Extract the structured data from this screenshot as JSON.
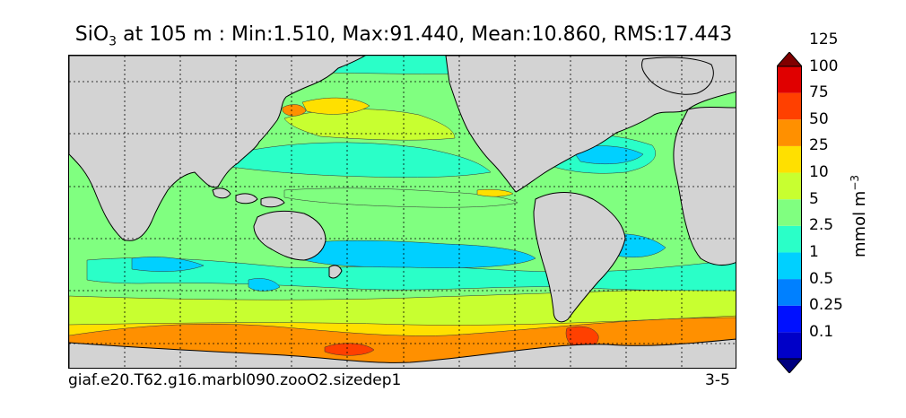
{
  "title": {
    "variable": "SiO",
    "variable_subscript": "3",
    "rest": " at 105 m : Min:1.510, Max:91.440, Mean:10.860, RMS:17.443"
  },
  "footer": {
    "case_name": "giaf.e20.T62.g16.marbl090.zooO2.sizedep1",
    "years": "3-5"
  },
  "colorbar": {
    "unit_prefix": "mmol m",
    "unit_exponent": "−3",
    "levels": [
      "0.1",
      "0.25",
      "0.5",
      "1",
      "2.5",
      "5",
      "10",
      "25",
      "50",
      "75",
      "100",
      "125"
    ],
    "colors": [
      "#00007f",
      "#0000c8",
      "#0010ff",
      "#0080ff",
      "#00d0ff",
      "#2affc8",
      "#80ff80",
      "#c8ff30",
      "#ffe000",
      "#ff9000",
      "#ff4000",
      "#e00000",
      "#800000"
    ],
    "extend": "both"
  },
  "map": {
    "land_color": "#d3d3d3",
    "no_data_color": "#ffffff",
    "gridlines": "dotted",
    "projection": "cylindrical"
  }
}
